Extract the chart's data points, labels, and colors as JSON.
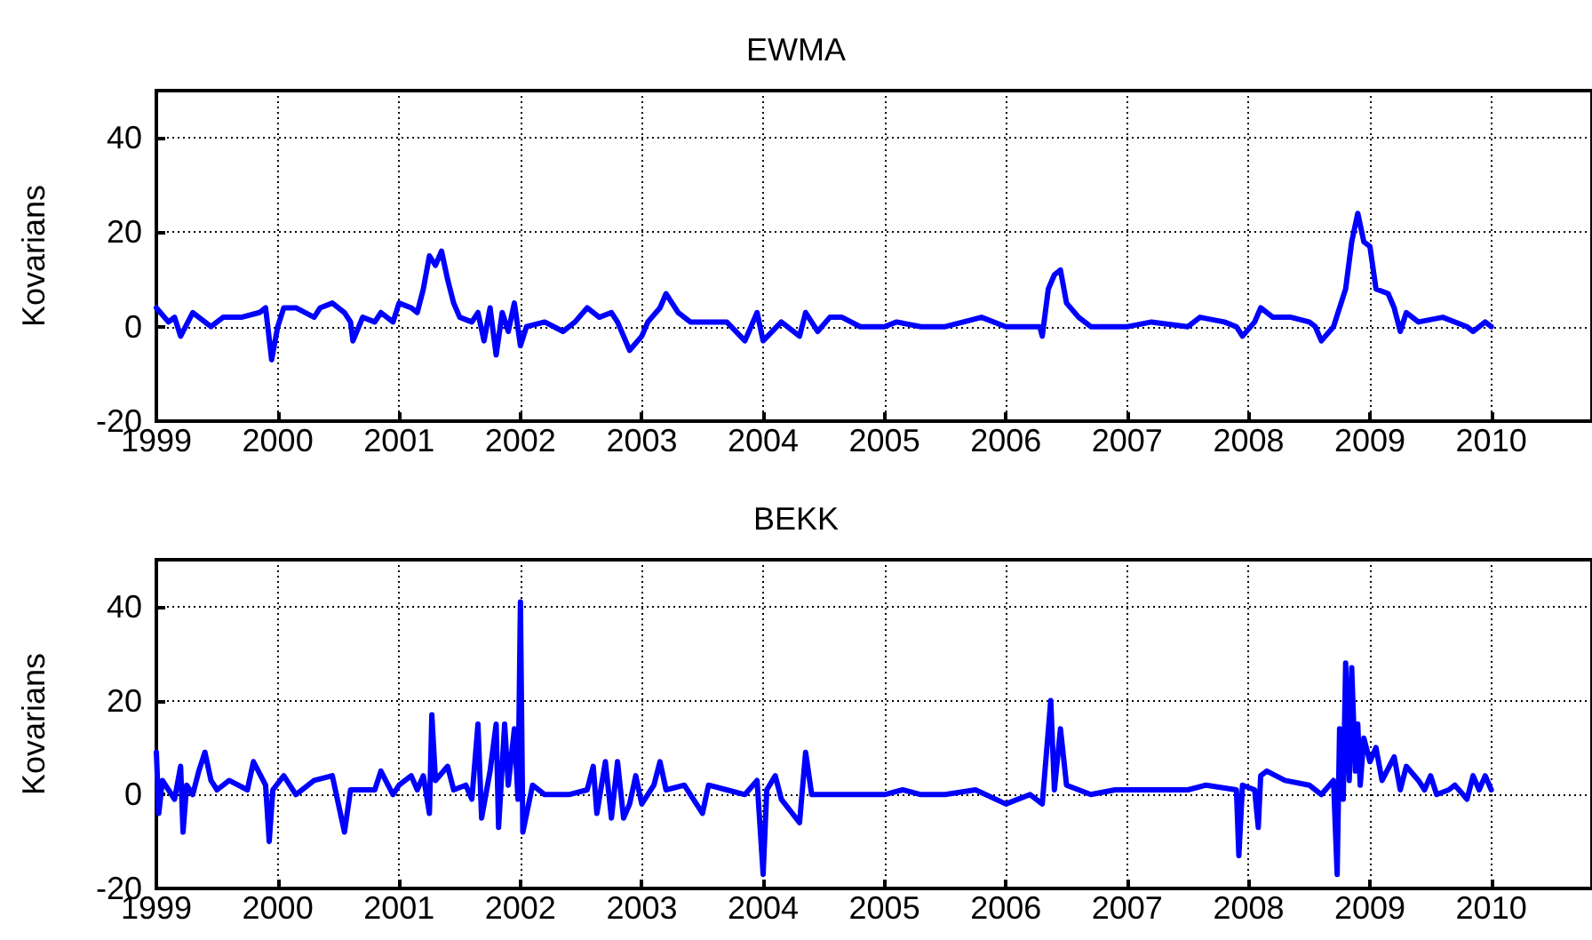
{
  "chart_data": [
    {
      "type": "line",
      "title": "EWMA",
      "ylabel": "Kovarians",
      "xlim": [
        1999,
        2010.83
      ],
      "xticks": [
        1999,
        2000,
        2001,
        2002,
        2003,
        2004,
        2005,
        2006,
        2007,
        2008,
        2009,
        2010
      ],
      "ylim": [
        -20,
        50
      ],
      "yticks": [
        -20,
        0,
        20,
        40
      ],
      "grid": true,
      "marker": "none",
      "line_style": "solid",
      "series": [
        {
          "color": "#0000ff",
          "x": [
            1999.0,
            1999.1,
            1999.15,
            1999.2,
            1999.3,
            1999.45,
            1999.55,
            1999.7,
            1999.85,
            1999.9,
            1999.95,
            2000.0,
            2000.05,
            2000.15,
            2000.3,
            2000.35,
            2000.45,
            2000.55,
            2000.6,
            2000.62,
            2000.7,
            2000.8,
            2000.85,
            2000.95,
            2001.0,
            2001.1,
            2001.15,
            2001.2,
            2001.25,
            2001.3,
            2001.35,
            2001.4,
            2001.45,
            2001.5,
            2001.6,
            2001.65,
            2001.7,
            2001.75,
            2001.8,
            2001.85,
            2001.9,
            2001.95,
            2002.0,
            2002.05,
            2002.2,
            2002.35,
            2002.45,
            2002.55,
            2002.65,
            2002.75,
            2002.8,
            2002.9,
            2003.0,
            2003.05,
            2003.15,
            2003.2,
            2003.3,
            2003.4,
            2003.5,
            2003.7,
            2003.85,
            2003.95,
            2004.0,
            2004.15,
            2004.3,
            2004.35,
            2004.45,
            2004.55,
            2004.65,
            2004.8,
            2005.0,
            2005.1,
            2005.3,
            2005.5,
            2005.8,
            2006.0,
            2006.28,
            2006.3,
            2006.35,
            2006.4,
            2006.45,
            2006.5,
            2006.6,
            2006.7,
            2007.0,
            2007.2,
            2007.5,
            2007.6,
            2007.8,
            2007.9,
            2007.95,
            2008.05,
            2008.1,
            2008.2,
            2008.35,
            2008.5,
            2008.55,
            2008.6,
            2008.7,
            2008.8,
            2008.85,
            2008.9,
            2008.95,
            2009.0,
            2009.05,
            2009.15,
            2009.2,
            2009.25,
            2009.3,
            2009.4,
            2009.6,
            2009.8,
            2009.85,
            2009.95,
            2010.0
          ],
          "values": [
            4,
            1,
            2,
            -2,
            3,
            0,
            2,
            2,
            3,
            4,
            -7,
            0,
            4,
            4,
            2,
            4,
            5,
            3,
            1,
            -3,
            2,
            1,
            3,
            1,
            5,
            4,
            3,
            8,
            15,
            13,
            16,
            10,
            5,
            2,
            1,
            3,
            -3,
            4,
            -6,
            3,
            -1,
            5,
            -4,
            0,
            1,
            -1,
            1,
            4,
            2,
            3,
            1,
            -5,
            -2,
            1,
            4,
            7,
            3,
            1,
            1,
            1,
            -3,
            3,
            -3,
            1,
            -2,
            3,
            -1,
            2,
            2,
            0,
            0,
            1,
            0,
            0,
            2,
            0,
            0,
            -2,
            8,
            11,
            12,
            5,
            2,
            0,
            0,
            1,
            0,
            2,
            1,
            0,
            -2,
            1,
            4,
            2,
            2,
            1,
            0,
            -3,
            0,
            8,
            18,
            24,
            18,
            17,
            8,
            7,
            4,
            -1,
            3,
            1,
            2,
            0,
            -1,
            1,
            0
          ]
        }
      ]
    },
    {
      "type": "line",
      "title": "BEKK",
      "ylabel": "Kovarians",
      "xlim": [
        1999,
        2010.83
      ],
      "xticks": [
        1999,
        2000,
        2001,
        2002,
        2003,
        2004,
        2005,
        2006,
        2007,
        2008,
        2009,
        2010
      ],
      "ylim": [
        -20,
        50
      ],
      "yticks": [
        -20,
        0,
        20,
        40
      ],
      "grid": true,
      "marker": "none",
      "line_style": "solid",
      "series": [
        {
          "color": "#0000ff",
          "x": [
            1999.0,
            1999.02,
            1999.05,
            1999.1,
            1999.15,
            1999.2,
            1999.22,
            1999.25,
            1999.3,
            1999.35,
            1999.4,
            1999.45,
            1999.5,
            1999.6,
            1999.75,
            1999.8,
            1999.9,
            1999.93,
            1999.96,
            2000.05,
            2000.15,
            2000.3,
            2000.45,
            2000.55,
            2000.6,
            2000.8,
            2000.85,
            2000.95,
            2001.0,
            2001.1,
            2001.15,
            2001.2,
            2001.25,
            2001.27,
            2001.3,
            2001.4,
            2001.45,
            2001.55,
            2001.6,
            2001.65,
            2001.68,
            2001.75,
            2001.8,
            2001.82,
            2001.87,
            2001.9,
            2001.95,
            2001.98,
            2002.0,
            2002.02,
            2002.1,
            2002.2,
            2002.4,
            2002.55,
            2002.6,
            2002.63,
            2002.7,
            2002.75,
            2002.8,
            2002.85,
            2002.9,
            2002.95,
            2003.0,
            2003.1,
            2003.15,
            2003.2,
            2003.35,
            2003.5,
            2003.55,
            2003.7,
            2003.85,
            2003.95,
            2004.0,
            2004.03,
            2004.1,
            2004.15,
            2004.3,
            2004.35,
            2004.4,
            2004.6,
            2005.0,
            2005.15,
            2005.3,
            2005.5,
            2005.75,
            2006.0,
            2006.2,
            2006.3,
            2006.37,
            2006.4,
            2006.45,
            2006.5,
            2006.7,
            2006.9,
            2007.2,
            2007.5,
            2007.65,
            2007.9,
            2007.92,
            2007.95,
            2008.05,
            2008.08,
            2008.1,
            2008.15,
            2008.3,
            2008.5,
            2008.6,
            2008.7,
            2008.73,
            2008.75,
            2008.78,
            2008.8,
            2008.83,
            2008.85,
            2008.88,
            2008.9,
            2008.92,
            2008.95,
            2009.0,
            2009.05,
            2009.1,
            2009.2,
            2009.25,
            2009.3,
            2009.4,
            2009.45,
            2009.5,
            2009.55,
            2009.65,
            2009.7,
            2009.8,
            2009.85,
            2009.9,
            2009.95,
            2010.0
          ],
          "values": [
            9,
            -4,
            3,
            1,
            -1,
            6,
            -8,
            2,
            0,
            5,
            9,
            3,
            1,
            3,
            1,
            7,
            2,
            -10,
            1,
            4,
            0,
            3,
            4,
            -8,
            1,
            1,
            5,
            0,
            2,
            4,
            1,
            4,
            -4,
            17,
            3,
            6,
            1,
            2,
            -1,
            15,
            -5,
            5,
            15,
            -7,
            15,
            2,
            14,
            -1,
            41,
            -8,
            2,
            0,
            0,
            1,
            6,
            -4,
            7,
            -5,
            7,
            -5,
            -2,
            4,
            -2,
            2,
            7,
            1,
            2,
            -4,
            2,
            1,
            0,
            3,
            -17,
            1,
            4,
            -1,
            -6,
            9,
            0,
            0,
            0,
            1,
            0,
            0,
            1,
            -2,
            0,
            -2,
            20,
            1,
            14,
            2,
            0,
            1,
            1,
            1,
            2,
            1,
            -13,
            2,
            1,
            -7,
            4,
            5,
            3,
            2,
            0,
            3,
            -17,
            14,
            -1,
            28,
            3,
            27,
            5,
            15,
            2,
            12,
            7,
            10,
            3,
            8,
            1,
            6,
            3,
            1,
            4,
            0,
            1,
            2,
            -1,
            4,
            1,
            4,
            1
          ]
        }
      ]
    }
  ]
}
